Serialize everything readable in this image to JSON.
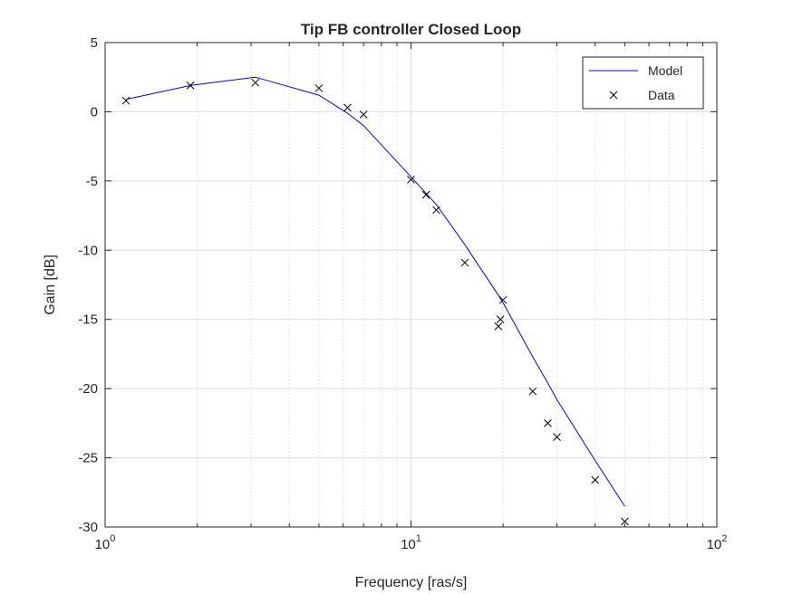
{
  "chart_data": {
    "type": "line",
    "title": "Tip FB controller Closed Loop",
    "xlabel": "Frequency [ras/s]",
    "ylabel": "Gain [dB]",
    "xscale": "log",
    "xlim": [
      1,
      100
    ],
    "ylim": [
      -30,
      5
    ],
    "grid": true,
    "legend_position": "top-right",
    "xticks": [
      {
        "value": 1,
        "base": "10",
        "exp": "0"
      },
      {
        "value": 10,
        "base": "10",
        "exp": "1"
      },
      {
        "value": 100,
        "base": "10",
        "exp": "2"
      }
    ],
    "yticks": [
      {
        "value": 5,
        "label": "5"
      },
      {
        "value": 0,
        "label": "0"
      },
      {
        "value": -5,
        "label": "-5"
      },
      {
        "value": -10,
        "label": "-10"
      },
      {
        "value": -15,
        "label": "-15"
      },
      {
        "value": -20,
        "label": "-20"
      },
      {
        "value": -25,
        "label": "-25"
      },
      {
        "value": -30,
        "label": "-30"
      }
    ],
    "series": [
      {
        "name": "Model",
        "style": "line",
        "color": "#0000ff",
        "x": [
          1.17,
          1.9,
          3.1,
          5.0,
          6.2,
          7.0,
          10.0,
          11.2,
          12.1,
          15.0,
          19.5,
          20.0,
          25.0,
          28.0,
          30.0,
          40.0,
          50.0
        ],
        "y": [
          0.9,
          1.9,
          2.5,
          1.2,
          -0.1,
          -1.0,
          -4.7,
          -5.9,
          -6.7,
          -9.6,
          -13.4,
          -13.8,
          -17.7,
          -19.6,
          -20.8,
          -25.2,
          -28.5
        ]
      },
      {
        "name": "Data",
        "style": "marker-x",
        "color": "#000000",
        "x": [
          1.17,
          1.9,
          3.1,
          5.0,
          6.2,
          7.0,
          10.0,
          11.2,
          12.1,
          15.0,
          19.3,
          19.6,
          20.0,
          25.0,
          28.0,
          30.0,
          40.0,
          50.0
        ],
        "y": [
          0.8,
          1.9,
          2.1,
          1.7,
          0.3,
          -0.2,
          -4.9,
          -6.0,
          -7.1,
          -10.9,
          -15.5,
          -15.0,
          -13.6,
          -20.2,
          -22.5,
          -23.5,
          -26.6,
          -29.6
        ]
      }
    ]
  }
}
